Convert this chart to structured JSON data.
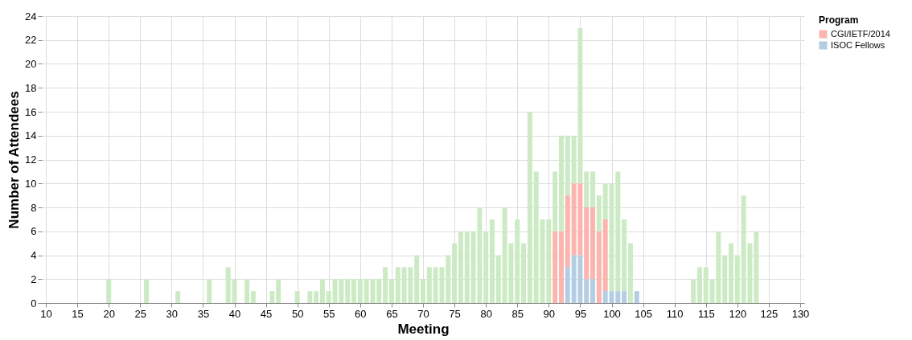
{
  "chart_data": {
    "type": "bar",
    "stacked": true,
    "xlabel": "Meeting",
    "ylabel": "Number of Attendees",
    "legend_title": "Program",
    "legend": "top right",
    "grid": true,
    "x": [
      20,
      26,
      31,
      36,
      39,
      40,
      42,
      43,
      46,
      47,
      50,
      52,
      53,
      54,
      55,
      56,
      57,
      58,
      59,
      60,
      61,
      62,
      63,
      64,
      65,
      66,
      67,
      68,
      69,
      70,
      71,
      72,
      73,
      74,
      75,
      76,
      77,
      78,
      79,
      80,
      81,
      82,
      83,
      84,
      85,
      86,
      87,
      88,
      89,
      90,
      91,
      92,
      93,
      94,
      95,
      96,
      97,
      98,
      99,
      100,
      101,
      102,
      103,
      104,
      113,
      114,
      115,
      116,
      117,
      118,
      119,
      120,
      121,
      122,
      123
    ],
    "xlim": [
      10,
      130
    ],
    "xticks": [
      10,
      15,
      20,
      25,
      30,
      35,
      40,
      45,
      50,
      55,
      60,
      65,
      70,
      75,
      80,
      85,
      90,
      95,
      100,
      105,
      110,
      115,
      120,
      125,
      130
    ],
    "ylim": [
      0,
      24
    ],
    "yticks": [
      0,
      2,
      4,
      6,
      8,
      10,
      12,
      14,
      16,
      18,
      20,
      22,
      24
    ],
    "series": [
      {
        "name": "ISOC Fellows",
        "color": "#b3cde3",
        "values": [
          null,
          null,
          null,
          null,
          null,
          null,
          null,
          null,
          null,
          null,
          null,
          null,
          null,
          null,
          null,
          null,
          null,
          null,
          null,
          null,
          null,
          null,
          null,
          null,
          null,
          null,
          null,
          null,
          null,
          null,
          null,
          null,
          null,
          null,
          null,
          null,
          null,
          null,
          null,
          null,
          null,
          null,
          null,
          null,
          null,
          null,
          null,
          null,
          null,
          null,
          null,
          null,
          3,
          4,
          4,
          2,
          2,
          null,
          1,
          1,
          1,
          1,
          null,
          1,
          null,
          null,
          null,
          null,
          null,
          null,
          null,
          null,
          null,
          null,
          null
        ]
      },
      {
        "name": "CGI/IETF/2014",
        "color": "#fbb4ae",
        "values": [
          null,
          null,
          null,
          null,
          null,
          null,
          null,
          null,
          null,
          null,
          null,
          null,
          null,
          null,
          null,
          null,
          null,
          null,
          null,
          null,
          null,
          null,
          null,
          null,
          null,
          null,
          null,
          null,
          null,
          null,
          null,
          null,
          null,
          null,
          null,
          null,
          null,
          null,
          null,
          null,
          null,
          null,
          null,
          null,
          null,
          null,
          null,
          null,
          null,
          null,
          6,
          6,
          6,
          6,
          6,
          6,
          6,
          6,
          6,
          null,
          null,
          null,
          null,
          null,
          null,
          null,
          null,
          null,
          null,
          null,
          null,
          null,
          null,
          null,
          null
        ]
      },
      {
        "color": "#ccebc5",
        "values": [
          2,
          2,
          1,
          2,
          3,
          2,
          2,
          1,
          1,
          2,
          1,
          1,
          1,
          2,
          1,
          2,
          2,
          2,
          2,
          2,
          2,
          2,
          2,
          3,
          2,
          3,
          3,
          3,
          4,
          2,
          3,
          3,
          3,
          4,
          5,
          6,
          6,
          6,
          8,
          6,
          7,
          4,
          8,
          5,
          7,
          5,
          16,
          11,
          7,
          7,
          5,
          8,
          5,
          4,
          13,
          3,
          3,
          3,
          3,
          9,
          10,
          6,
          5,
          null,
          2,
          3,
          3,
          2,
          6,
          4,
          5,
          4,
          9,
          5,
          6
        ]
      }
    ]
  }
}
